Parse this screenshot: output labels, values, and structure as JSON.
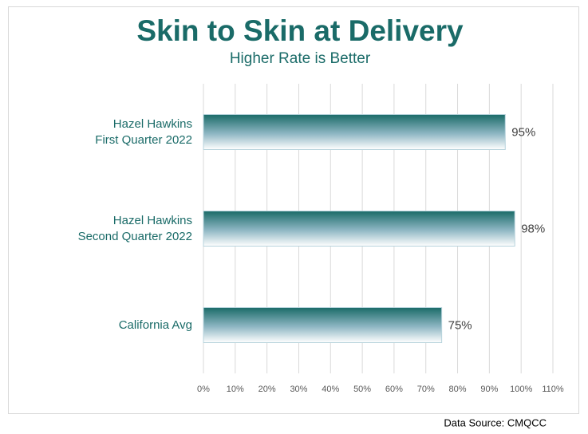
{
  "chart_data": {
    "type": "bar",
    "orientation": "horizontal",
    "title": "Skin to Skin at Delivery",
    "subtitle": "Higher Rate is Better",
    "categories": [
      "Hazel Hawkins\nFirst Quarter 2022",
      "Hazel Hawkins\nSecond Quarter 2022",
      "California Avg"
    ],
    "values": [
      95,
      98,
      75
    ],
    "value_labels": [
      "95%",
      "98%",
      "75%"
    ],
    "color": "#1a6b68",
    "xlim": [
      0,
      110
    ],
    "xticks": [
      {
        "value": 0,
        "label": "0%"
      },
      {
        "value": 10,
        "label": "10%"
      },
      {
        "value": 20,
        "label": "20%"
      },
      {
        "value": 30,
        "label": "30%"
      },
      {
        "value": 40,
        "label": "40%"
      },
      {
        "value": 50,
        "label": "50%"
      },
      {
        "value": 60,
        "label": "60%"
      },
      {
        "value": 70,
        "label": "70%"
      },
      {
        "value": 80,
        "label": "80%"
      },
      {
        "value": 90,
        "label": "90%"
      },
      {
        "value": 100,
        "label": "100%"
      },
      {
        "value": 110,
        "label": "110%"
      }
    ],
    "grid": true,
    "source": "Data Source:  CMQCC"
  }
}
